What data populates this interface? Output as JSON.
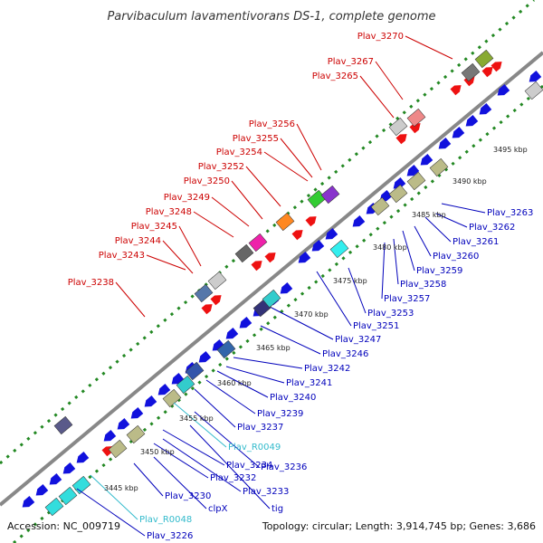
{
  "title": "Parvibaculum lavamentivorans DS-1, complete genome",
  "footer": {
    "accession": "Accession: NC_009719",
    "topology": "Topology: circular; Length: 3,914,745 bp; Genes: 3,686"
  },
  "colors": {
    "forward_label": "#cc0000",
    "reverse_label": "#0000bb",
    "rna_label": "#33bbcc",
    "backbone": "#888888",
    "dotted_ring": "#228822",
    "forward_gene": "#ee1111",
    "reverse_gene": "#1111dd"
  },
  "kbp_ticks": [
    "3445 kbp",
    "3450 kbp",
    "3455 kbp",
    "3460 kbp",
    "3465 kbp",
    "3470 kbp",
    "3475 kbp",
    "3480 kbp",
    "3485 kbp",
    "3490 kbp",
    "3495 kbp"
  ],
  "forward_labels": [
    "Plav_3238",
    "Plav_3243",
    "Plav_3244",
    "Plav_3245",
    "Plav_3248",
    "Plav_3249",
    "Plav_3250",
    "Plav_3252",
    "Plav_3254",
    "Plav_3255",
    "Plav_3256",
    "Plav_3265",
    "Plav_3267",
    "Plav_3270"
  ],
  "reverse_labels": [
    "Plav_3226",
    "Plav_R0048",
    "clpX",
    "Plav_3230",
    "tig",
    "Plav_3233",
    "Plav_3232",
    "Plav_3234",
    "Plav_3236",
    "Plav_R0049",
    "Plav_3237",
    "Plav_3239",
    "Plav_3240",
    "Plav_3241",
    "Plav_3242",
    "Plav_3246",
    "Plav_3247",
    "Plav_3251",
    "Plav_3253",
    "Plav_3257",
    "Plav_3258",
    "Plav_3259",
    "Plav_3260",
    "Plav_3261",
    "Plav_3262",
    "Plav_3263"
  ]
}
